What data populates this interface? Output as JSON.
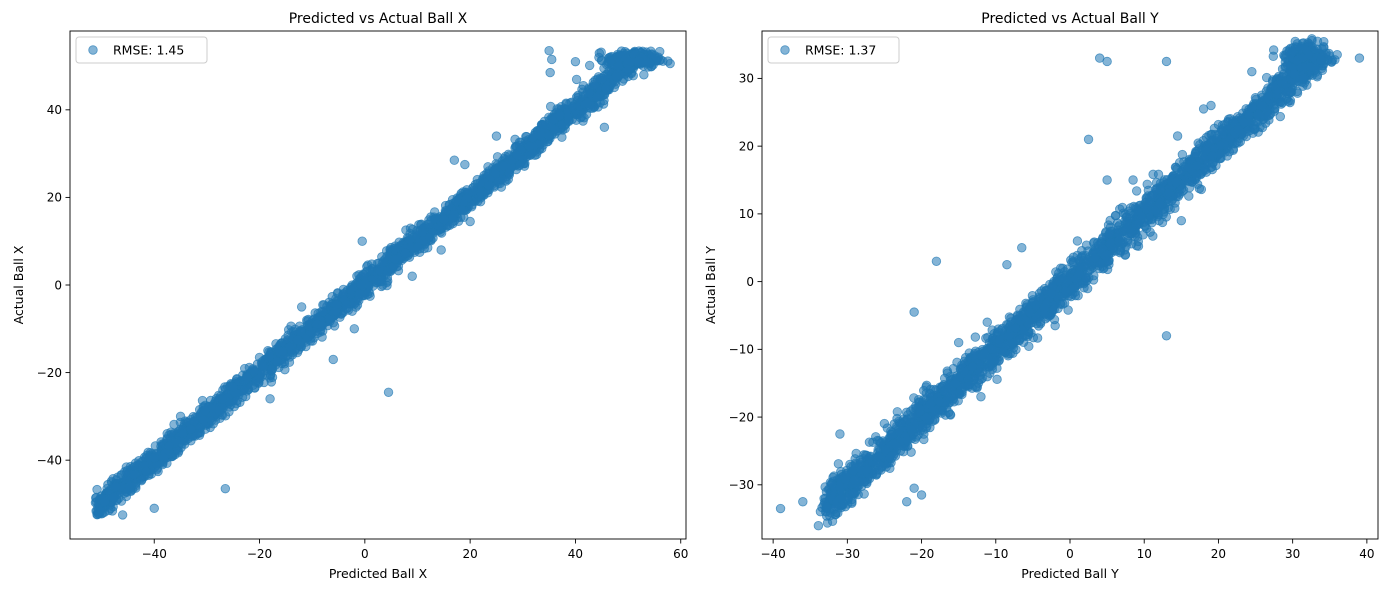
{
  "chart_data": [
    {
      "type": "scatter",
      "title": "Predicted vs Actual Ball X",
      "xlabel": "Predicted Ball X",
      "ylabel": "Actual Ball X",
      "xlim": [
        -56,
        61
      ],
      "ylim": [
        -58,
        58
      ],
      "xticks": [
        -40,
        -20,
        0,
        20,
        40,
        60
      ],
      "yticks": [
        -40,
        -20,
        0,
        20,
        40
      ],
      "grid": false,
      "legend": {
        "position": "top-left",
        "entries": [
          "RMSE: 1.45"
        ]
      },
      "color": "#1f77b4",
      "series": [
        {
          "name": "RMSE: 1.45",
          "diagonal": {
            "x_range": [
              -51,
              51.5
            ],
            "slope": 1.0,
            "intercept": 0.2,
            "spread": 1.45
          },
          "cluster": {
            "x_center": 51,
            "y_center": 51.5,
            "x_spread": 2.5,
            "y_spread": 0.9
          },
          "outliers": [
            [
              35.0,
              53.5
            ],
            [
              35.5,
              51.5
            ],
            [
              40.0,
              51.0
            ],
            [
              35.2,
              48.5
            ],
            [
              4.5,
              -24.5
            ],
            [
              -26.5,
              -46.5
            ],
            [
              -40.0,
              -51.0
            ],
            [
              -46.0,
              -52.5
            ],
            [
              -18.0,
              -26.0
            ],
            [
              -6.0,
              -17.0
            ],
            [
              -12.0,
              -5.0
            ],
            [
              17.0,
              28.5
            ],
            [
              19.0,
              27.5
            ],
            [
              -0.5,
              10.0
            ],
            [
              25.0,
              34.0
            ],
            [
              -35.0,
              -30.0
            ],
            [
              -40.0,
              -39.5
            ],
            [
              53.0,
              48.0
            ],
            [
              45.5,
              36.0
            ],
            [
              9.0,
              2.0
            ],
            [
              -8.0,
              -10.5
            ],
            [
              20.0,
              14.5
            ],
            [
              -2.0,
              -10.0
            ],
            [
              14.5,
              8.0
            ]
          ]
        }
      ]
    },
    {
      "type": "scatter",
      "title": "Predicted vs Actual Ball Y",
      "xlabel": "Predicted Ball Y",
      "ylabel": "Actual Ball Y",
      "xlim": [
        -41.5,
        41.5
      ],
      "ylim": [
        -38,
        37
      ],
      "xticks": [
        -40,
        -30,
        -20,
        -10,
        0,
        10,
        20,
        30,
        40
      ],
      "yticks": [
        -30,
        -20,
        -10,
        0,
        10,
        20,
        30
      ],
      "grid": false,
      "legend": {
        "position": "top-left",
        "entries": [
          "RMSE: 1.37"
        ]
      },
      "color": "#1f77b4",
      "series": [
        {
          "name": "RMSE: 1.37",
          "diagonal": {
            "x_range": [
              -33,
              33
            ],
            "slope": 1.0,
            "intercept": 0.0,
            "spread": 1.37
          },
          "cluster": {
            "x_center": 32,
            "y_center": 33,
            "x_spread": 1.5,
            "y_spread": 1.0
          },
          "outliers": [
            [
              -39.0,
              -33.5
            ],
            [
              -36.0,
              -32.5
            ],
            [
              -31.0,
              -22.5
            ],
            [
              -22.0,
              -32.5
            ],
            [
              -20.0,
              -31.5
            ],
            [
              -21.0,
              -30.5
            ],
            [
              -18.0,
              3.0
            ],
            [
              -21.0,
              -4.5
            ],
            [
              -15.0,
              -9.0
            ],
            [
              -8.5,
              2.5
            ],
            [
              -6.5,
              5.0
            ],
            [
              -5.0,
              -3.0
            ],
            [
              -12.0,
              -17.0
            ],
            [
              4.0,
              33.0
            ],
            [
              5.0,
              32.5
            ],
            [
              13.0,
              32.5
            ],
            [
              2.5,
              21.0
            ],
            [
              5.0,
              15.0
            ],
            [
              13.0,
              -8.0
            ],
            [
              8.5,
              15.0
            ],
            [
              15.0,
              9.0
            ],
            [
              18.0,
              25.5
            ],
            [
              14.5,
              21.5
            ],
            [
              19.0,
              26.0
            ],
            [
              24.5,
              31.0
            ],
            [
              36.0,
              33.5
            ],
            [
              39.0,
              33.0
            ],
            [
              12.0,
              9.0
            ],
            [
              -2.0,
              -6.5
            ],
            [
              1.0,
              6.0
            ]
          ]
        }
      ]
    }
  ]
}
